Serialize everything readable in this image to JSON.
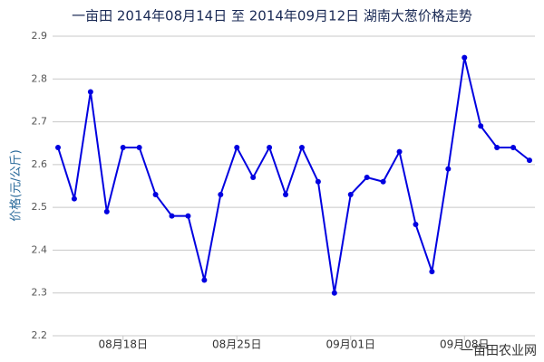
{
  "chart_data": {
    "type": "line",
    "title": "一亩田 2014年08月14日 至 2014年09月12日 湖南大葱价格走势",
    "y_label": "价格(元/公斤)",
    "watermark": "一亩田农业网",
    "categories": [
      null,
      null,
      null,
      null,
      "08月18日",
      null,
      null,
      null,
      null,
      null,
      null,
      "08月25日",
      null,
      null,
      null,
      null,
      null,
      null,
      "09月01日",
      null,
      null,
      null,
      null,
      null,
      null,
      "09月08日",
      null,
      null,
      null,
      null
    ],
    "series": [
      {
        "name": "湖南大葱",
        "color": "#0000e0",
        "values": [
          2.64,
          2.52,
          2.77,
          2.49,
          2.64,
          2.64,
          2.53,
          2.48,
          2.48,
          2.33,
          2.53,
          2.64,
          2.57,
          2.64,
          2.53,
          2.64,
          2.56,
          2.3,
          2.53,
          2.57,
          2.56,
          2.63,
          2.46,
          2.35,
          2.59,
          2.85,
          2.69,
          2.64,
          2.64,
          2.61
        ]
      }
    ],
    "ylim": [
      2.2,
      2.9
    ],
    "yticks": [
      2.2,
      2.3,
      2.4,
      2.5,
      2.6,
      2.7,
      2.8,
      2.9
    ],
    "grid": true
  }
}
